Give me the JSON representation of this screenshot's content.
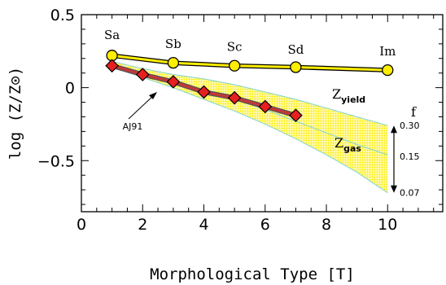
{
  "chart_data": {
    "type": "line",
    "xlabel": "Morphological Type [T]",
    "ylabel": "log (Z/Z⊙)",
    "xlim": [
      0,
      11.8
    ],
    "ylim": [
      -0.85,
      0.5
    ],
    "x_ticks": [
      0,
      2,
      4,
      6,
      8,
      10
    ],
    "y_ticks": [
      0.5,
      0,
      -0.5
    ],
    "y_tick_labels": [
      "0.5",
      "0",
      "−0.5"
    ],
    "type_labels": [
      {
        "text": "Sa",
        "x": 1,
        "y": 0.36
      },
      {
        "text": "Sb",
        "x": 3,
        "y": 0.3
      },
      {
        "text": "Sc",
        "x": 5,
        "y": 0.28
      },
      {
        "text": "Sd",
        "x": 7,
        "y": 0.26
      },
      {
        "text": "Im",
        "x": 10,
        "y": 0.25
      }
    ],
    "series": [
      {
        "name": "Z_yield",
        "color": "#ffee00",
        "x": [
          1,
          3,
          5,
          7,
          10
        ],
        "y": [
          0.22,
          0.17,
          0.15,
          0.14,
          0.12
        ]
      },
      {
        "name": "AJ91",
        "color": "#e62020",
        "x": [
          1,
          2,
          3,
          4,
          5,
          6,
          7
        ],
        "y": [
          0.15,
          0.09,
          0.04,
          -0.03,
          -0.07,
          -0.13,
          -0.19
        ]
      }
    ],
    "band": {
      "name": "Z_gas",
      "color": "#ffee00",
      "edge_color": "#7fd4d4",
      "x": [
        1,
        2,
        3,
        4,
        5,
        6,
        7,
        8,
        9,
        10
      ],
      "upper": [
        0.18,
        0.13,
        0.09,
        0.06,
        0.02,
        -0.03,
        -0.08,
        -0.14,
        -0.2,
        -0.26
      ],
      "middle": [
        0.16,
        0.1,
        0.04,
        -0.02,
        -0.08,
        -0.15,
        -0.23,
        -0.31,
        -0.39,
        -0.46
      ],
      "lower": [
        0.14,
        0.07,
        0.0,
        -0.08,
        -0.16,
        -0.25,
        -0.35,
        -0.46,
        -0.58,
        -0.72
      ]
    },
    "annotations": {
      "zyield": {
        "base": "Z",
        "sub": "yield"
      },
      "zgas": {
        "base": "Z",
        "sub": "gas"
      },
      "aj91": "AJ91",
      "f_label": "f",
      "f_values": [
        "0.30",
        "0.15",
        "0.07"
      ]
    }
  }
}
